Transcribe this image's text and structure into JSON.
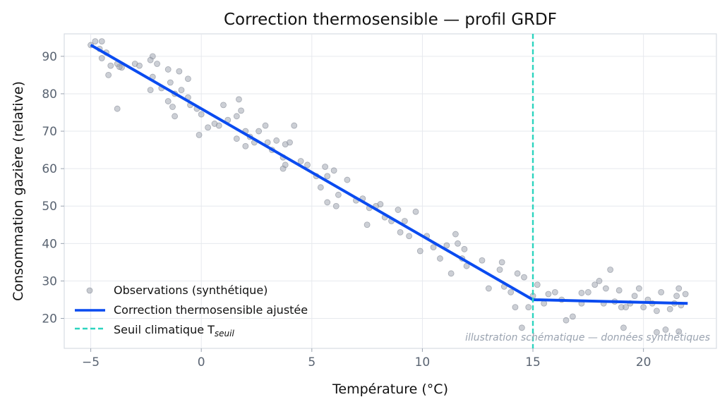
{
  "chart_data": {
    "type": "scatter",
    "title": "Correction thermosensible — profil GRDF",
    "xlabel": "Température (°C)",
    "ylabel": "Consommation gazière (relative)",
    "xlim": [
      -6.2,
      23.3
    ],
    "ylim": [
      12.0,
      96.0
    ],
    "xticks": [
      -5,
      0,
      5,
      10,
      15,
      20
    ],
    "yticks": [
      20,
      30,
      40,
      50,
      60,
      70,
      80,
      90
    ],
    "xtick_labels": [
      "−5",
      "0",
      "5",
      "10",
      "15",
      "20"
    ],
    "ytick_labels": [
      "20",
      "30",
      "40",
      "50",
      "60",
      "70",
      "80",
      "90"
    ],
    "grid": true,
    "legend_position": "lower-left",
    "threshold": 15,
    "annotation": "illustration schématique — données synthétiques",
    "colors": {
      "observations": "#9aa0ab",
      "fit": "#0a4bf0",
      "threshold": "#2dd4bf"
    },
    "series": [
      {
        "name": "Observations (synthétique)",
        "kind": "scatter",
        "points": [
          [
            -5.0,
            93.0
          ],
          [
            -4.8,
            94.0
          ],
          [
            -4.5,
            94.0
          ],
          [
            -4.6,
            92.0
          ],
          [
            -4.3,
            91.0
          ],
          [
            -4.5,
            89.5
          ],
          [
            -4.1,
            87.5
          ],
          [
            -3.8,
            88.0
          ],
          [
            -3.6,
            87.0
          ],
          [
            -3.8,
            76.0
          ],
          [
            -4.2,
            85.0
          ],
          [
            -3.7,
            87.2
          ],
          [
            -3.0,
            88.0
          ],
          [
            -2.8,
            87.5
          ],
          [
            -2.2,
            90.0
          ],
          [
            -2.3,
            89.0
          ],
          [
            -2.0,
            88.0
          ],
          [
            -1.5,
            86.5
          ],
          [
            -1.0,
            86.0
          ],
          [
            -0.6,
            84.0
          ],
          [
            -2.2,
            84.5
          ],
          [
            -2.3,
            81.0
          ],
          [
            -1.8,
            81.5
          ],
          [
            -1.4,
            83.0
          ],
          [
            -1.2,
            80.0
          ],
          [
            -1.5,
            78.0
          ],
          [
            -1.3,
            76.5
          ],
          [
            -1.2,
            74.0
          ],
          [
            -0.9,
            81.0
          ],
          [
            -0.6,
            79.0
          ],
          [
            -0.5,
            77.0
          ],
          [
            -0.2,
            76.0
          ],
          [
            0.0,
            74.5
          ],
          [
            -0.1,
            69.0
          ],
          [
            0.3,
            71.0
          ],
          [
            0.6,
            72.0
          ],
          [
            0.8,
            71.5
          ],
          [
            1.0,
            77.0
          ],
          [
            1.2,
            73.0
          ],
          [
            1.6,
            74.0
          ],
          [
            1.6,
            68.0
          ],
          [
            1.7,
            78.5
          ],
          [
            1.8,
            75.5
          ],
          [
            2.0,
            70.0
          ],
          [
            2.2,
            68.5
          ],
          [
            2.4,
            67.0
          ],
          [
            2.0,
            66.0
          ],
          [
            2.6,
            70.0
          ],
          [
            2.9,
            71.5
          ],
          [
            3.0,
            67.0
          ],
          [
            3.2,
            65.0
          ],
          [
            3.4,
            67.5
          ],
          [
            3.8,
            66.5
          ],
          [
            3.7,
            63.0
          ],
          [
            3.8,
            61.0
          ],
          [
            3.7,
            60.0
          ],
          [
            4.0,
            67.0
          ],
          [
            4.2,
            71.5
          ],
          [
            4.5,
            62.0
          ],
          [
            4.8,
            61.0
          ],
          [
            5.2,
            58.0
          ],
          [
            5.4,
            55.0
          ],
          [
            5.6,
            60.5
          ],
          [
            5.7,
            58.0
          ],
          [
            5.7,
            51.0
          ],
          [
            6.0,
            59.5
          ],
          [
            6.2,
            53.0
          ],
          [
            6.1,
            50.0
          ],
          [
            6.6,
            57.0
          ],
          [
            7.0,
            51.5
          ],
          [
            7.3,
            52.0
          ],
          [
            7.5,
            45.0
          ],
          [
            7.6,
            49.5
          ],
          [
            7.9,
            50.0
          ],
          [
            8.1,
            50.5
          ],
          [
            8.3,
            47.0
          ],
          [
            8.6,
            46.0
          ],
          [
            8.9,
            49.0
          ],
          [
            9.0,
            43.0
          ],
          [
            9.2,
            46.0
          ],
          [
            9.4,
            42.0
          ],
          [
            9.7,
            48.5
          ],
          [
            9.9,
            38.0
          ],
          [
            10.2,
            42.0
          ],
          [
            10.5,
            39.0
          ],
          [
            10.8,
            36.0
          ],
          [
            11.1,
            39.5
          ],
          [
            11.3,
            32.0
          ],
          [
            11.5,
            42.5
          ],
          [
            11.6,
            40.0
          ],
          [
            11.8,
            36.0
          ],
          [
            11.9,
            38.5
          ],
          [
            12.0,
            34.0
          ],
          [
            12.7,
            35.5
          ],
          [
            13.0,
            28.0
          ],
          [
            13.5,
            33.0
          ],
          [
            13.6,
            35.0
          ],
          [
            13.7,
            28.5
          ],
          [
            14.0,
            27.0
          ],
          [
            14.2,
            23.0
          ],
          [
            14.3,
            32.0
          ],
          [
            14.5,
            17.5
          ],
          [
            14.6,
            31.0
          ],
          [
            14.8,
            23.0
          ],
          [
            15.0,
            26.0
          ],
          [
            15.2,
            29.0
          ],
          [
            15.5,
            24.0
          ],
          [
            15.7,
            26.5
          ],
          [
            16.0,
            27.0
          ],
          [
            16.3,
            25.0
          ],
          [
            16.5,
            19.5
          ],
          [
            16.8,
            20.5
          ],
          [
            17.2,
            24.0
          ],
          [
            17.5,
            27.0
          ],
          [
            17.8,
            29.0
          ],
          [
            18.0,
            30.0
          ],
          [
            18.2,
            24.0
          ],
          [
            18.3,
            28.0
          ],
          [
            18.5,
            33.0
          ],
          [
            18.7,
            24.5
          ],
          [
            18.9,
            27.5
          ],
          [
            19.0,
            23.0
          ],
          [
            19.1,
            17.5
          ],
          [
            19.2,
            23.0
          ],
          [
            19.4,
            24.0
          ],
          [
            19.6,
            26.0
          ],
          [
            19.8,
            28.0
          ],
          [
            20.0,
            23.0
          ],
          [
            20.2,
            25.0
          ],
          [
            20.4,
            24.0
          ],
          [
            20.6,
            22.0
          ],
          [
            20.8,
            27.0
          ],
          [
            21.0,
            17.0
          ],
          [
            21.2,
            22.5
          ],
          [
            21.4,
            24.0
          ],
          [
            21.5,
            26.0
          ],
          [
            21.6,
            28.0
          ],
          [
            21.7,
            23.5
          ],
          [
            21.9,
            26.5
          ],
          [
            21.6,
            16.5
          ],
          [
            20.6,
            16.3
          ],
          [
            17.2,
            26.8
          ]
        ]
      },
      {
        "name": "Correction thermosensible ajustée",
        "kind": "line",
        "points": [
          [
            -5.0,
            93.0
          ],
          [
            15.0,
            25.0
          ],
          [
            22.0,
            24.0
          ]
        ]
      },
      {
        "name": "Seuil climatique T",
        "name_sub": "seuil",
        "kind": "vline",
        "x": 15
      }
    ]
  }
}
